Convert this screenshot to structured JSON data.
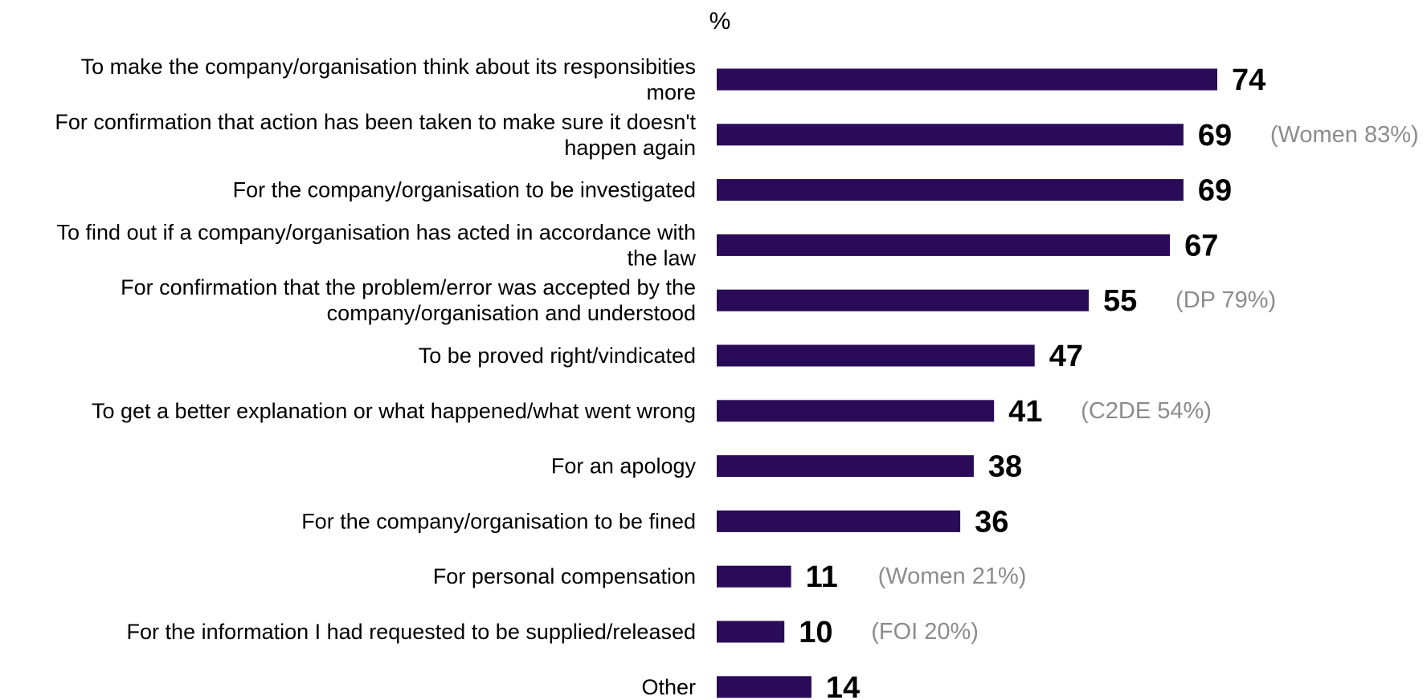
{
  "chart_data": {
    "type": "bar",
    "orientation": "horizontal",
    "unit_label": "%",
    "bar_color": "#2a0b58",
    "note_color": "#8c8c8c",
    "xlim": [
      0,
      100
    ],
    "grid": false,
    "categories": [
      [
        "To make the company/organisation think about its responsibities",
        "more"
      ],
      [
        "For confirmation that action has been taken to make sure it doesn't",
        "happen again"
      ],
      [
        "For the company/organisation to be investigated"
      ],
      [
        "To find out if a company/organisation has acted in accordance with",
        "the law"
      ],
      [
        "For confirmation that the problem/error was accepted by the",
        "company/organisation and understood"
      ],
      [
        "To be proved right/vindicated"
      ],
      [
        "To get a better explanation or what happened/what went wrong"
      ],
      [
        "For an apology"
      ],
      [
        "For the company/organisation to be fined"
      ],
      [
        "For personal compensation"
      ],
      [
        "For the information I had requested to be supplied/released"
      ],
      [
        "Other"
      ]
    ],
    "values": [
      74,
      69,
      69,
      67,
      55,
      47,
      41,
      38,
      36,
      11,
      10,
      14
    ],
    "notes": [
      "",
      "(Women 83%)",
      "",
      "",
      "(DP 79%)",
      "",
      "(C2DE 54%)",
      "",
      "",
      "(Women 21%)",
      "(FOI 20%)",
      ""
    ]
  }
}
